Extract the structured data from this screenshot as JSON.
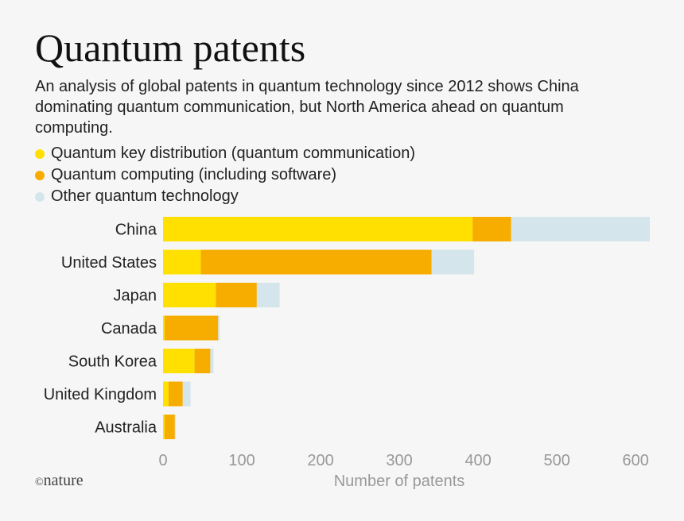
{
  "title": "Quantum patents",
  "subtitle": "An analysis of global patents in quantum technology since 2012 shows China dominating quantum communication, but North America ahead on quantum computing.",
  "footer": {
    "logo_text": "nature",
    "logo_symbol": "©"
  },
  "colors": {
    "qkd": "#ffe000",
    "computing": "#f6ad00",
    "other": "#d4e6ec",
    "axis_text": "#999999"
  },
  "chart_data": {
    "type": "bar",
    "orientation": "horizontal",
    "stacked": true,
    "categories": [
      "China",
      "United States",
      "Japan",
      "Canada",
      "South Korea",
      "United Kingdom",
      "Australia"
    ],
    "series": [
      {
        "name": "Quantum key distribution (quantum communication)",
        "color": "#ffe000",
        "values": [
          393,
          48,
          67,
          2,
          40,
          7,
          2
        ]
      },
      {
        "name": "Quantum computing (including software)",
        "color": "#f6ad00",
        "values": [
          49,
          293,
          52,
          68,
          20,
          18,
          13
        ]
      },
      {
        "name": "Other quantum technology",
        "color": "#d4e6ec",
        "values": [
          176,
          54,
          29,
          2,
          4,
          10,
          1
        ]
      }
    ],
    "xlabel": "Number of patents",
    "ylabel": "",
    "xlim": [
      0,
      620
    ],
    "xticks": [
      0,
      100,
      200,
      300,
      400,
      500,
      600
    ],
    "grid": false,
    "legend_position": "top-left"
  }
}
